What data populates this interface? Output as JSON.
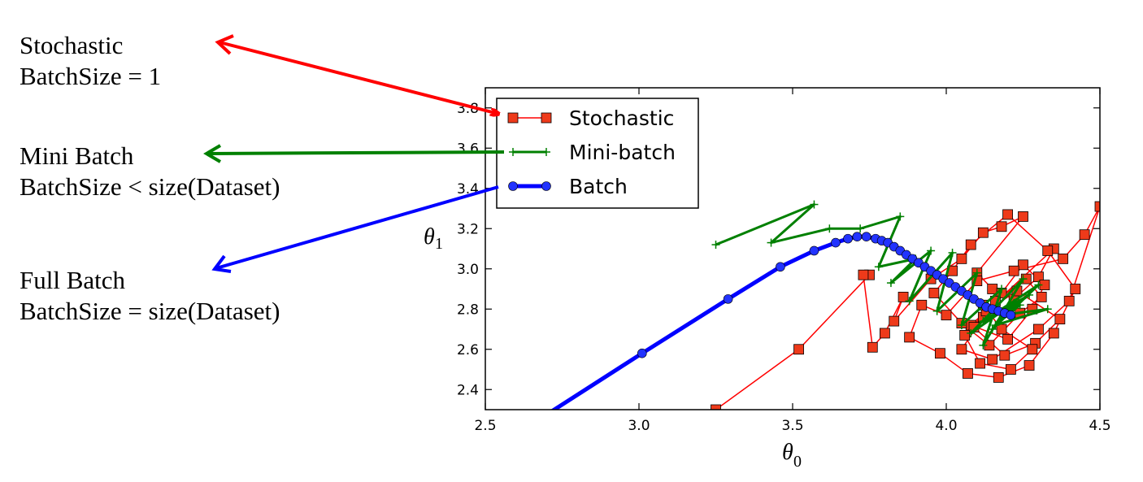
{
  "annotations": {
    "stochastic": {
      "line1": "Stochastic",
      "line2": "BatchSize = 1"
    },
    "minibatch": {
      "line1": "Mini Batch",
      "line2": "BatchSize < size(Dataset)"
    },
    "fullbatch": {
      "line1": "Full Batch",
      "line2": "BatchSize = size(Dataset)"
    }
  },
  "colors": {
    "stochastic": "#ff0000",
    "minibatch": "#008000",
    "batch": "#0000ff",
    "marker_fill": "#ee3a1a",
    "batch_marker": "#2233ff"
  },
  "chart_data": {
    "type": "line",
    "xlabel": "θ",
    "xlabel_sub": "0",
    "ylabel": "θ",
    "ylabel_sub": "1",
    "xlim": [
      2.5,
      4.5
    ],
    "ylim": [
      2.3,
      3.9
    ],
    "xticks": [
      "2.5",
      "3.0",
      "3.5",
      "4.0",
      "4.5"
    ],
    "yticks": [
      "2.4",
      "2.6",
      "2.8",
      "3.0",
      "3.2",
      "3.4",
      "3.6",
      "3.8"
    ],
    "grid": false,
    "legend_placement": "top-left",
    "series": [
      {
        "name": "Stochastic",
        "marker": "square",
        "x": [
          3.25,
          3.52,
          3.75,
          3.73,
          3.76,
          3.8,
          3.86,
          3.83,
          3.95,
          4.05,
          4.12,
          4.18,
          4.25,
          4.1,
          4.15,
          4.22,
          4.3,
          4.35,
          4.08,
          4.2,
          4.28,
          4.32,
          4.25,
          4.18,
          4.12,
          4.05,
          4.15,
          4.3,
          4.4,
          4.5,
          4.45,
          4.38,
          4.22,
          4.1,
          4.0,
          3.92,
          3.88,
          3.98,
          4.07,
          4.17,
          4.27,
          4.35,
          4.42,
          4.33,
          4.2,
          4.08,
          4.02,
          3.96,
          4.05,
          4.14,
          4.24,
          4.31,
          4.26,
          4.16,
          4.09,
          4.19,
          4.29,
          4.37,
          4.23,
          4.13,
          4.06,
          4.11,
          4.21,
          4.28,
          4.18,
          4.12
        ],
        "y": [
          2.3,
          2.6,
          2.97,
          2.97,
          2.61,
          2.68,
          2.86,
          2.74,
          2.95,
          3.05,
          3.18,
          3.21,
          3.26,
          2.98,
          2.9,
          2.85,
          2.96,
          3.1,
          2.72,
          2.65,
          2.8,
          2.92,
          3.02,
          2.88,
          2.76,
          2.6,
          2.55,
          2.7,
          2.84,
          3.31,
          3.17,
          3.05,
          2.99,
          2.94,
          2.77,
          2.82,
          2.66,
          2.58,
          2.48,
          2.46,
          2.52,
          2.68,
          2.9,
          3.09,
          3.27,
          3.12,
          2.99,
          2.88,
          2.73,
          2.62,
          2.78,
          2.86,
          2.95,
          2.84,
          2.71,
          2.57,
          2.63,
          2.75,
          2.89,
          2.79,
          2.67,
          2.53,
          2.5,
          2.6,
          2.7,
          2.82
        ]
      },
      {
        "name": "Mini-batch",
        "marker": "plus",
        "x": [
          3.25,
          3.57,
          3.43,
          3.62,
          3.72,
          3.85,
          3.78,
          3.9,
          3.82,
          3.95,
          3.88,
          4.02,
          3.97,
          4.1,
          4.05,
          4.18,
          4.12,
          4.25,
          4.08,
          4.22,
          4.15,
          4.3,
          4.12,
          4.27,
          4.18,
          4.33,
          4.16,
          4.24,
          4.2
        ],
        "y": [
          3.12,
          3.32,
          3.13,
          3.2,
          3.2,
          3.26,
          3.01,
          3.05,
          2.93,
          3.09,
          2.84,
          3.08,
          2.79,
          2.98,
          2.72,
          2.9,
          2.62,
          2.95,
          2.68,
          2.83,
          2.7,
          2.92,
          2.74,
          2.87,
          2.77,
          2.8,
          2.72,
          2.82,
          2.78
        ]
      },
      {
        "name": "Batch",
        "marker": "circle",
        "x": [
          2.5,
          3.01,
          3.29,
          3.46,
          3.57,
          3.64,
          3.68,
          3.71,
          3.74,
          3.77,
          3.79,
          3.81,
          3.83,
          3.85,
          3.87,
          3.89,
          3.91,
          3.93,
          3.95,
          3.97,
          3.99,
          4.01,
          4.03,
          4.05,
          4.07,
          4.09,
          4.11,
          4.13,
          4.15,
          4.17,
          4.19,
          4.21
        ],
        "y": [
          2.08,
          2.58,
          2.85,
          3.01,
          3.09,
          3.13,
          3.15,
          3.16,
          3.16,
          3.15,
          3.14,
          3.13,
          3.11,
          3.09,
          3.07,
          3.05,
          3.03,
          3.01,
          2.99,
          2.97,
          2.95,
          2.93,
          2.91,
          2.89,
          2.87,
          2.85,
          2.83,
          2.81,
          2.8,
          2.79,
          2.78,
          2.77
        ]
      }
    ]
  }
}
